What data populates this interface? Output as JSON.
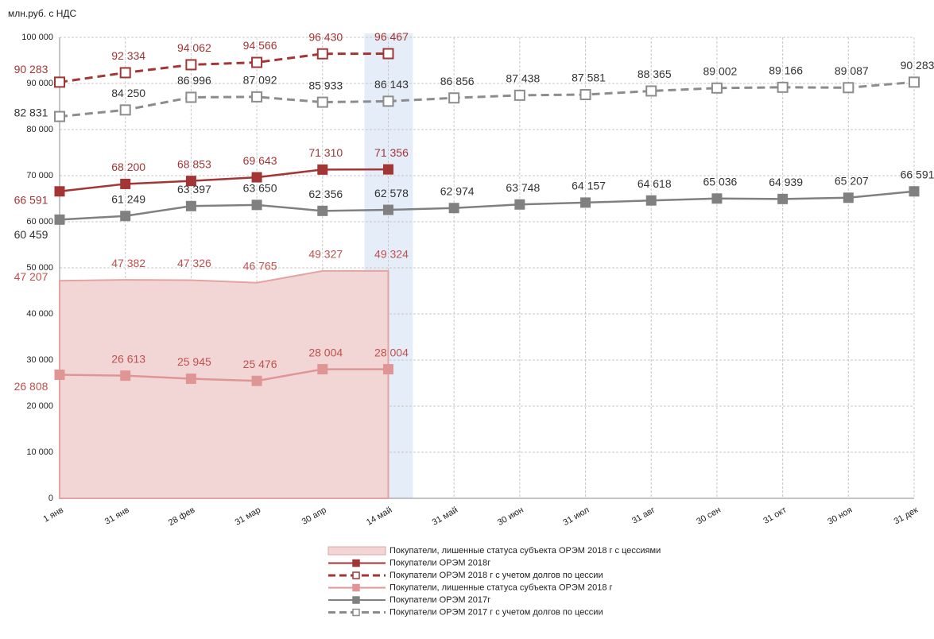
{
  "chart_data": {
    "type": "line",
    "y_axis_label": "млн.руб. с НДС",
    "categories": [
      "1 янв",
      "31 янв",
      "28 фев",
      "31 мар",
      "30 апр",
      "14 май",
      "31 май",
      "30 июн",
      "31 июл",
      "31 авг",
      "30 сен",
      "31 окт",
      "30 ноя",
      "31 дек"
    ],
    "ylim": [
      0,
      100000
    ],
    "yticks": [
      {
        "value": 0,
        "label": "0"
      },
      {
        "value": 10000,
        "label": "10 000"
      },
      {
        "value": 20000,
        "label": "20 000"
      },
      {
        "value": 30000,
        "label": "30 000"
      },
      {
        "value": 40000,
        "label": "40 000"
      },
      {
        "value": 50000,
        "label": "50 000"
      },
      {
        "value": 60000,
        "label": "60 000"
      },
      {
        "value": 70000,
        "label": "70 000"
      },
      {
        "value": 80000,
        "label": "80 000"
      },
      {
        "value": 90000,
        "label": "90 000"
      },
      {
        "value": 100000,
        "label": "100 000"
      }
    ],
    "grid": true,
    "legend": "bottom",
    "series": [
      {
        "name": "Покупатели,  лишенные  статуса субъекта ОРЭМ  2018 г с цессиями",
        "kind": "area",
        "color": "#e3a3a3",
        "fill": "#f2d6d6",
        "label_color": "#c0504d",
        "values": [
          47207,
          47382,
          47326,
          46765,
          49327,
          49324,
          null,
          null,
          null,
          null,
          null,
          null,
          null,
          null
        ],
        "value_labels": [
          "47 207",
          "47 382",
          "47 326",
          "46 765",
          "49 327",
          "49 324",
          null,
          null,
          null,
          null,
          null,
          null,
          null,
          null
        ]
      },
      {
        "name": "Покупатели  ОРЭМ  2018г",
        "kind": "line",
        "color": "#a33535",
        "marker": "filled",
        "label_color": "#a33535",
        "values": [
          66591,
          68200,
          68853,
          69643,
          71310,
          71356,
          null,
          null,
          null,
          null,
          null,
          null,
          null,
          null
        ],
        "value_labels": [
          "66 591",
          "68 200",
          "68 853",
          "69 643",
          "71 310",
          "71 356",
          null,
          null,
          null,
          null,
          null,
          null,
          null,
          null
        ]
      },
      {
        "name": "Покупатели  ОРЭМ  2018  г с учетом долгов  по цессии",
        "kind": "line",
        "dashed": true,
        "color": "#a33535",
        "marker": "hollow",
        "label_color": "#a33535",
        "values": [
          90283,
          92334,
          94062,
          94566,
          96430,
          96467,
          null,
          null,
          null,
          null,
          null,
          null,
          null,
          null
        ],
        "value_labels": [
          "90 283",
          "92 334",
          "94 062",
          "94 566",
          "96 430",
          "96 467",
          null,
          null,
          null,
          null,
          null,
          null,
          null,
          null
        ]
      },
      {
        "name": "Покупатели,  лишенные  статуса субъекта ОРЭМ  2018  г",
        "kind": "line",
        "color": "#e09595",
        "marker": "filled",
        "label_color": "#c0504d",
        "values": [
          26808,
          26613,
          25945,
          25476,
          28004,
          28004,
          null,
          null,
          null,
          null,
          null,
          null,
          null,
          null
        ],
        "value_labels": [
          "26 808",
          "26 613",
          "25 945",
          "25 476",
          "28 004",
          "28 004",
          null,
          null,
          null,
          null,
          null,
          null,
          null,
          null
        ]
      },
      {
        "name": "Покупатели  ОРЭМ  2017г",
        "kind": "line",
        "color": "#808080",
        "marker": "filled",
        "label_color": "#333333",
        "values": [
          60459,
          61249,
          63397,
          63650,
          62356,
          62578,
          62974,
          63748,
          64157,
          64618,
          65036,
          64939,
          65207,
          66591
        ],
        "value_labels": [
          "60 459",
          "61 249",
          "63 397",
          "63 650",
          "62 356",
          "62 578",
          "62 974",
          "63 748",
          "64 157",
          "64 618",
          "65 036",
          "64 939",
          "65 207",
          "66 591"
        ]
      },
      {
        "name": "Покупатели  ОРЭМ  2017  г с учетом долгов  по цессии",
        "kind": "line",
        "dashed": true,
        "color": "#8c8c8c",
        "marker": "hollow",
        "label_color": "#333333",
        "values": [
          82831,
          84250,
          86996,
          87092,
          85933,
          86143,
          86856,
          87438,
          87581,
          88365,
          89002,
          89166,
          89087,
          90283
        ],
        "value_labels": [
          "82 831",
          "84 250",
          "86 996",
          "87 092",
          "85 933",
          "86 143",
          "86 856",
          "87 438",
          "87 581",
          "88 365",
          "89 002",
          "89 166",
          "89 087",
          "90 283"
        ]
      }
    ]
  }
}
